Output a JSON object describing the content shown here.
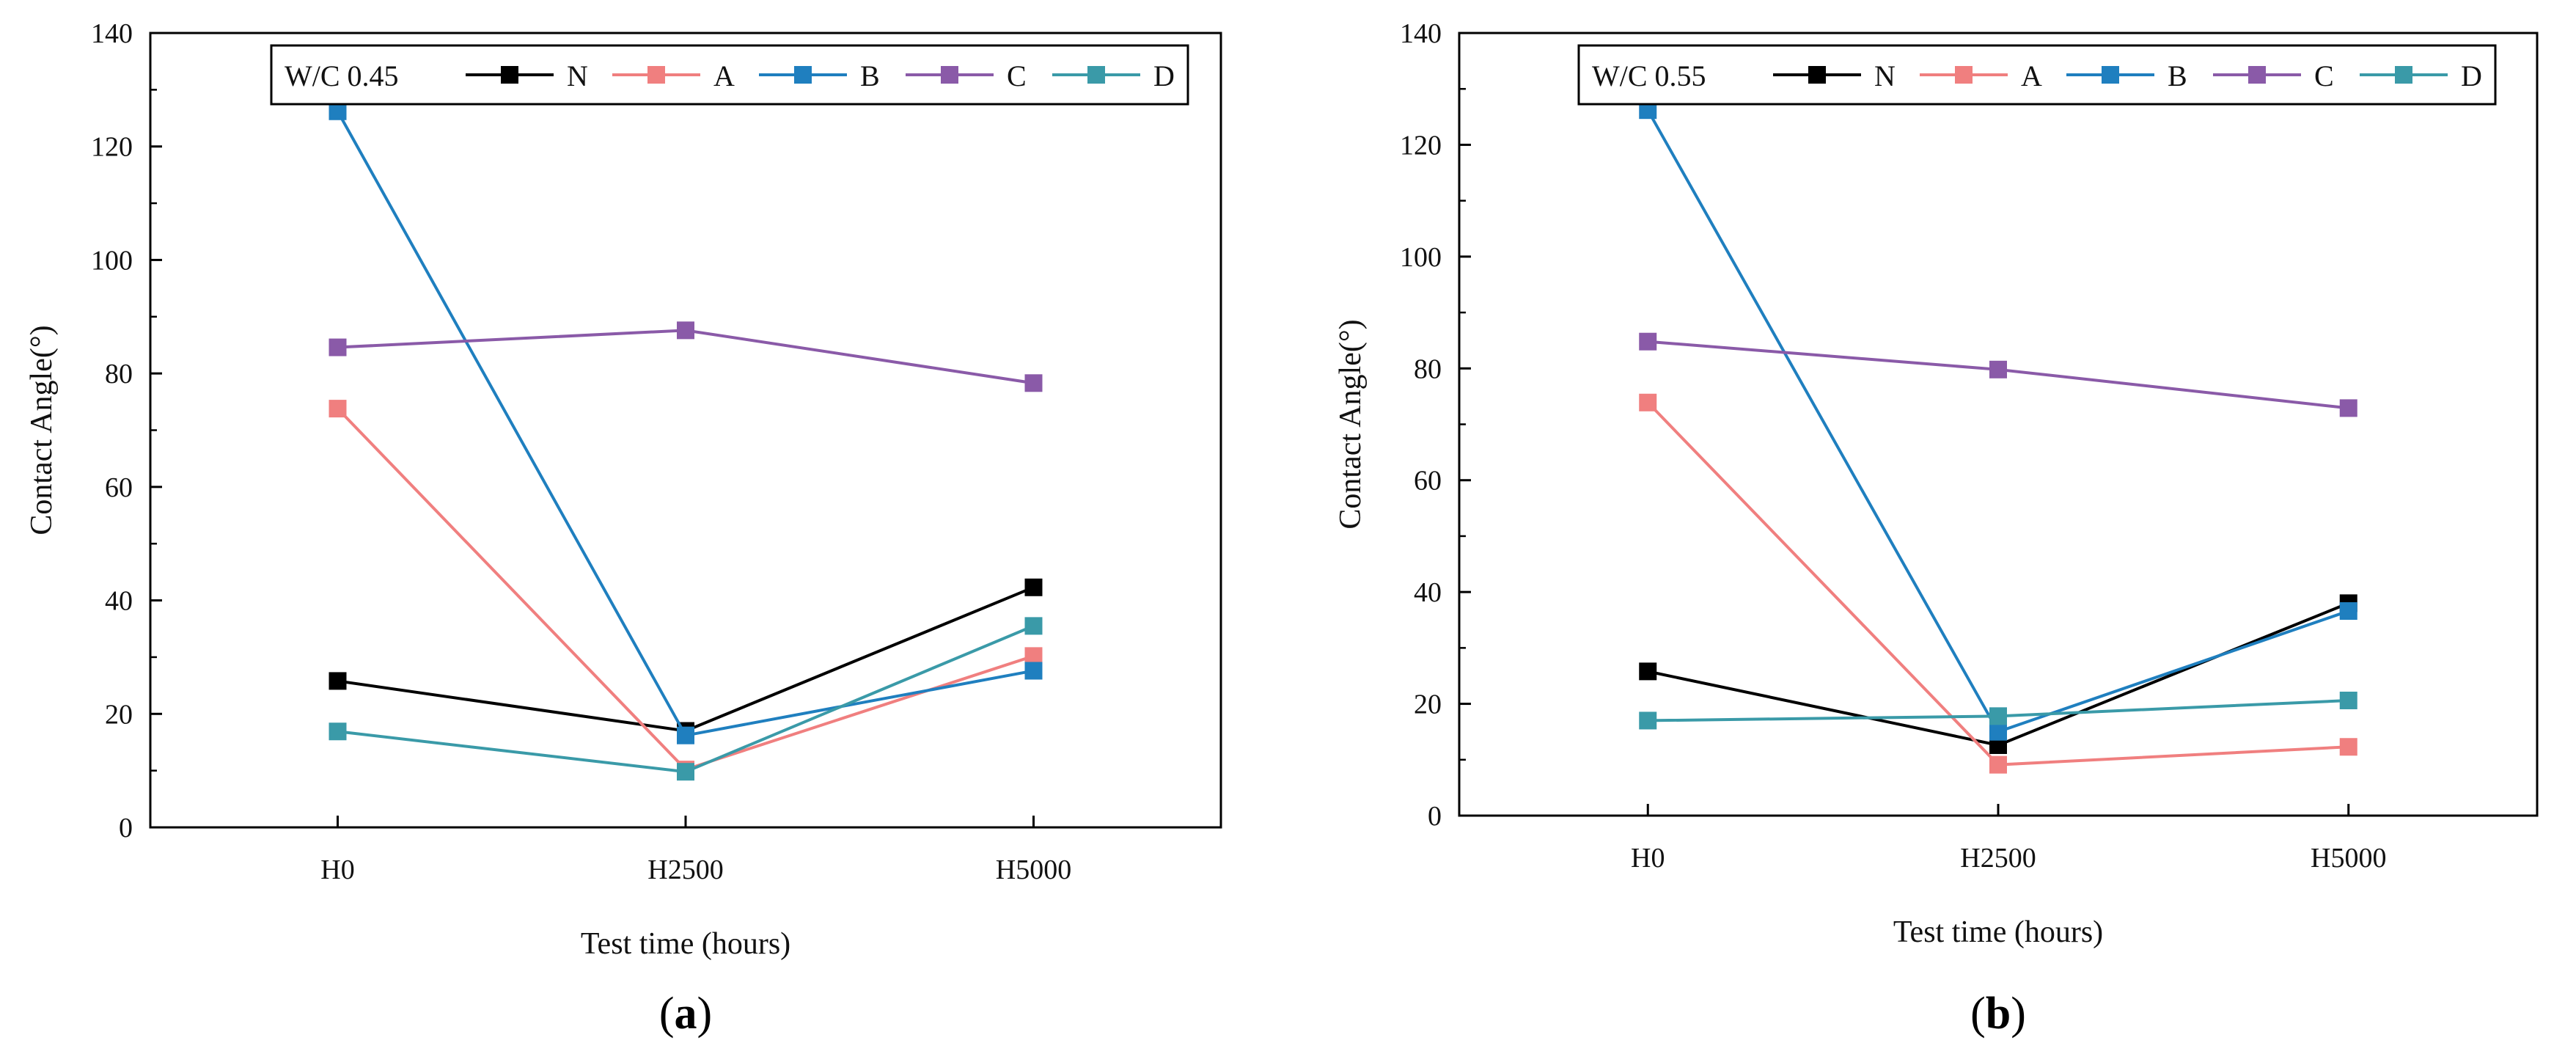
{
  "colors": {
    "N": "#000000",
    "A": "#f07f7f",
    "B": "#1f7fbf",
    "C": "#8a5aa8",
    "D": "#3a9aa8"
  },
  "chart_data": [
    {
      "type": "line",
      "panel_label": "a",
      "legend_title": "W/C 0.45",
      "legend_placement": "top",
      "categories": [
        "H0",
        "H2500",
        "H5000"
      ],
      "xlabel": "Test time (hours)",
      "ylabel": "Contact Angle(°)",
      "ylim": [
        0,
        140
      ],
      "yticks": [
        0,
        20,
        40,
        60,
        80,
        100,
        120,
        140
      ],
      "grid": false,
      "series": [
        {
          "name": "N",
          "values": [
            25.8,
            17.0,
            42.3
          ]
        },
        {
          "name": "A",
          "values": [
            73.8,
            10.2,
            30.2
          ]
        },
        {
          "name": "B",
          "values": [
            126.2,
            16.2,
            27.6
          ]
        },
        {
          "name": "C",
          "values": [
            84.6,
            87.6,
            78.3
          ]
        },
        {
          "name": "D",
          "values": [
            16.9,
            9.8,
            35.5
          ]
        }
      ]
    },
    {
      "type": "line",
      "panel_label": "b",
      "legend_title": "W/C 0.55",
      "legend_placement": "top",
      "categories": [
        "H0",
        "H2500",
        "H5000"
      ],
      "xlabel": "Test time (hours)",
      "ylabel": "Contact Angle(°)",
      "ylim": [
        0,
        140
      ],
      "yticks": [
        0,
        20,
        40,
        60,
        80,
        100,
        120,
        140
      ],
      "grid": false,
      "series": [
        {
          "name": "N",
          "values": [
            25.8,
            12.6,
            38.0
          ]
        },
        {
          "name": "A",
          "values": [
            73.9,
            9.1,
            12.3
          ]
        },
        {
          "name": "B",
          "values": [
            126.2,
            15.0,
            36.6
          ]
        },
        {
          "name": "C",
          "values": [
            84.8,
            79.8,
            72.9
          ]
        },
        {
          "name": "D",
          "values": [
            17.0,
            17.8,
            20.6
          ]
        }
      ]
    }
  ]
}
